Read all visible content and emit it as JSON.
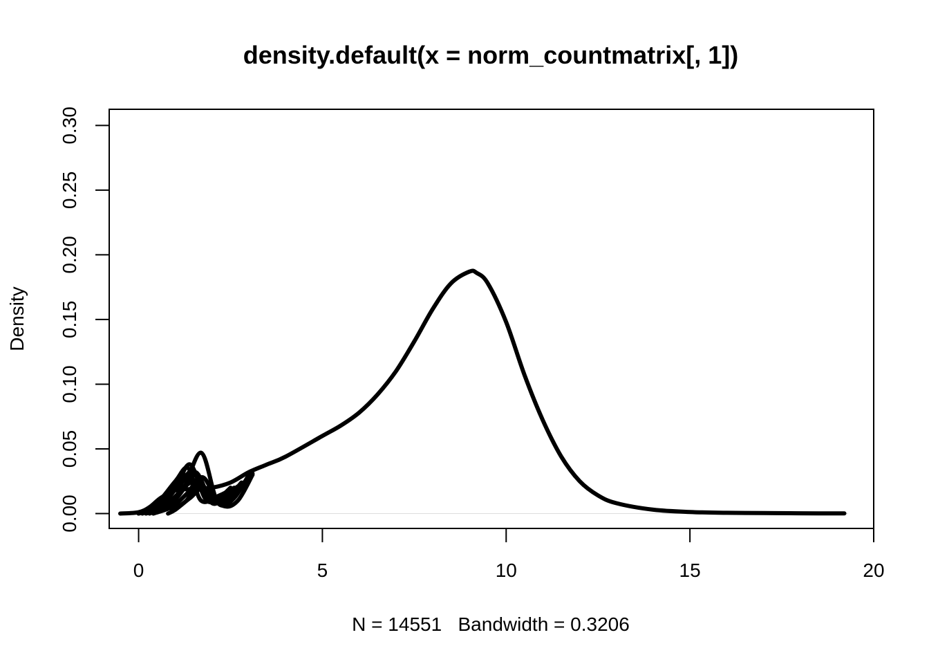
{
  "chart_data": {
    "type": "line",
    "title": "density.default(x = norm_countmatrix[, 1])",
    "xlabel": "N = 14551   Bandwidth = 0.3206",
    "ylabel": "Density",
    "xlim": [
      -0.8,
      20
    ],
    "ylim": [
      -0.0115,
      0.3125
    ],
    "xticks": [
      0,
      5,
      10,
      15,
      20
    ],
    "xtick_labels": [
      "0",
      "5",
      "10",
      "15",
      "20"
    ],
    "yticks": [
      0,
      0.05,
      0.1,
      0.15,
      0.2,
      0.25,
      0.3
    ],
    "ytick_labels": [
      "0.00",
      "0.05",
      "0.10",
      "0.15",
      "0.20",
      "0.25",
      "0.30"
    ],
    "grid": false,
    "legend": "none",
    "line_color": "#000000",
    "series": [
      {
        "x": [
          -0.5,
          0,
          0.3,
          0.6,
          1,
          1.5,
          2,
          2.5,
          3,
          3.5,
          4,
          5,
          5.5,
          6,
          6.5,
          7,
          7.5,
          8,
          8.5,
          9,
          9.2,
          9.5,
          10,
          10.5,
          11,
          11.5,
          12,
          12.5,
          13,
          14,
          15,
          16,
          17,
          18,
          19.2
        ],
        "y": [
          0,
          0.001,
          0.005,
          0.012,
          0.018,
          0.019,
          0.02,
          0.024,
          0.032,
          0.038,
          0.044,
          0.06,
          0.068,
          0.078,
          0.092,
          0.11,
          0.133,
          0.158,
          0.178,
          0.187,
          0.186,
          0.178,
          0.148,
          0.107,
          0.072,
          0.044,
          0.025,
          0.014,
          0.008,
          0.003,
          0.0012,
          0.0006,
          0.0004,
          0.0002,
          0.0001
        ]
      },
      {
        "x": [
          0,
          0.5,
          1,
          1.4,
          1.8,
          2.1,
          2.5
        ],
        "y": [
          0,
          0.005,
          0.02,
          0.038,
          0.012,
          0.01,
          0.02
        ]
      },
      {
        "x": [
          0.1,
          0.6,
          1.1,
          1.55,
          1.9,
          2.3,
          2.7
        ],
        "y": [
          0,
          0.006,
          0.022,
          0.032,
          0.015,
          0.012,
          0.018
        ]
      },
      {
        "x": [
          0.2,
          0.7,
          1.2,
          1.7,
          2.1,
          2.4,
          2.9
        ],
        "y": [
          0,
          0.004,
          0.018,
          0.047,
          0.012,
          0.008,
          0.025
        ]
      },
      {
        "x": [
          0,
          0.5,
          1,
          1.35,
          1.7,
          2.2,
          2.6
        ],
        "y": [
          0,
          0.008,
          0.025,
          0.035,
          0.01,
          0.014,
          0.02
        ]
      },
      {
        "x": [
          0.3,
          0.8,
          1.25,
          1.6,
          2,
          2.4,
          2.8
        ],
        "y": [
          0,
          0.007,
          0.02,
          0.03,
          0.008,
          0.015,
          0.022
        ]
      },
      {
        "x": [
          0.4,
          0.9,
          1.3,
          1.75,
          2.2,
          2.6,
          3
        ],
        "y": [
          0,
          0.005,
          0.015,
          0.028,
          0.007,
          0.012,
          0.03
        ]
      },
      {
        "x": [
          0.8,
          1,
          1.4,
          1.8,
          2.3,
          2.7,
          3.1
        ],
        "y": [
          0,
          0.003,
          0.012,
          0.02,
          0.006,
          0.01,
          0.03
        ]
      },
      {
        "x": [
          0.5,
          1,
          1.3,
          1.65,
          2.1,
          2.5,
          3
        ],
        "y": [
          0.001,
          0.012,
          0.03,
          0.02,
          0.009,
          0.013,
          0.027
        ]
      },
      {
        "x": [
          0.2,
          0.8,
          1.2,
          1.5,
          1.9,
          2.3,
          2.8
        ],
        "y": [
          0.001,
          0.014,
          0.028,
          0.026,
          0.011,
          0.009,
          0.024
        ]
      },
      {
        "x": [
          0.6,
          1.1,
          1.45,
          1.85,
          2.25,
          2.65,
          3.05
        ],
        "y": [
          0.002,
          0.016,
          0.024,
          0.018,
          0.01,
          0.016,
          0.029
        ]
      },
      {
        "x": [
          0.9,
          1.3,
          1.6,
          1.95,
          2.35,
          2.75,
          3.1
        ],
        "y": [
          0.002,
          0.01,
          0.022,
          0.012,
          0.009,
          0.018,
          0.031
        ]
      },
      {
        "x": [
          0.35,
          0.75,
          1.15,
          1.5,
          1.85,
          2.2,
          2.7
        ],
        "y": [
          0.001,
          0.01,
          0.024,
          0.033,
          0.014,
          0.011,
          0.021
        ]
      }
    ]
  }
}
